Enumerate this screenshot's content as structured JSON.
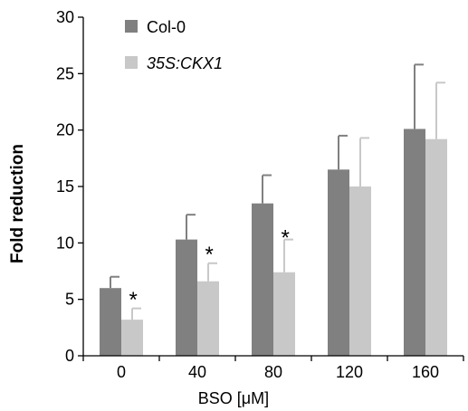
{
  "chart_data": {
    "type": "bar",
    "title": "",
    "xlabel": "BSO [μM]",
    "ylabel": "Fold reduction",
    "categories": [
      "0",
      "40",
      "80",
      "120",
      "160"
    ],
    "ylim": [
      0,
      30
    ],
    "yticks": [
      "0",
      "5",
      "10",
      "15",
      "20",
      "25",
      "30"
    ],
    "grid": false,
    "legend_position": "top-left",
    "series": [
      {
        "name": "Col-0",
        "color": "#808080",
        "values": [
          6.0,
          10.3,
          13.5,
          16.5,
          20.1
        ],
        "errors": [
          1.0,
          2.2,
          2.5,
          3.0,
          5.7
        ]
      },
      {
        "name": "35S:CKX1",
        "color": "#c8c8c8",
        "italic": true,
        "values": [
          3.2,
          6.6,
          7.4,
          15.0,
          19.2
        ],
        "errors": [
          1.0,
          1.6,
          2.9,
          4.3,
          5.0
        ]
      }
    ],
    "annotations": [
      {
        "text": "*",
        "category": "0",
        "y": 5.7
      },
      {
        "text": "*",
        "category": "40",
        "y": 9.7
      },
      {
        "text": "*",
        "category": "80",
        "y": 11.2
      }
    ]
  }
}
